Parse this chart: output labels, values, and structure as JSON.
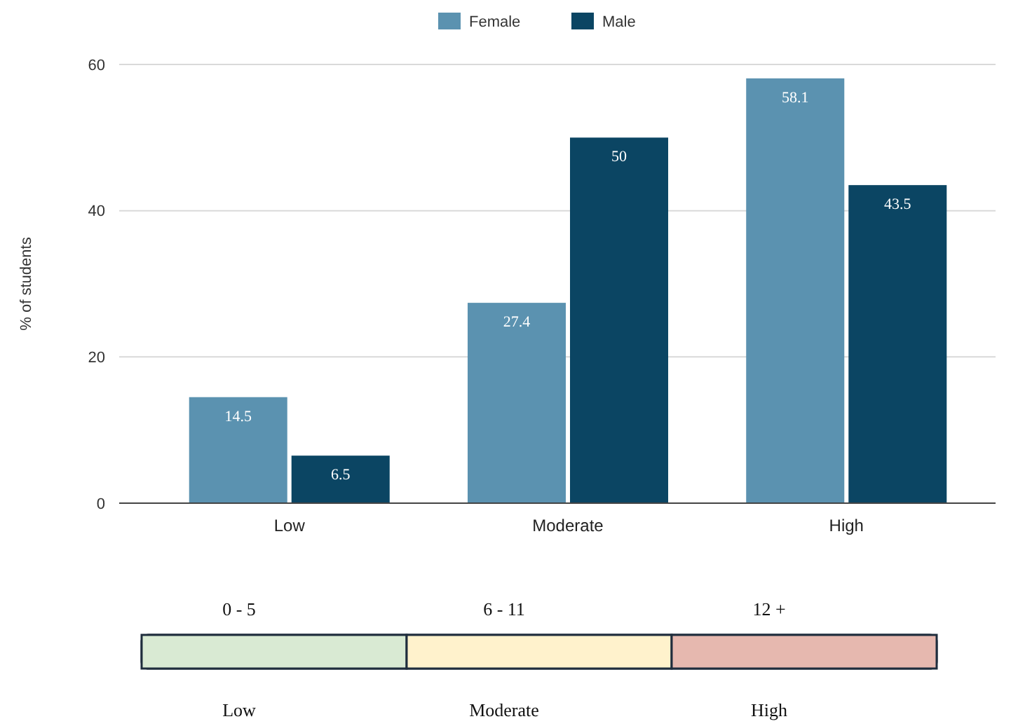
{
  "chart_data": {
    "type": "bar",
    "ylabel": "% of students",
    "categories": [
      "Low",
      "Moderate",
      "High"
    ],
    "series": [
      {
        "name": "Female",
        "color": "#5b92b0",
        "values": [
          14.5,
          27.4,
          58.1
        ]
      },
      {
        "name": "Male",
        "color": "#0b4563",
        "values": [
          6.5,
          50,
          43.5
        ]
      }
    ],
    "ylim": [
      0,
      60
    ],
    "yticks": [
      0,
      20,
      40,
      60
    ],
    "grid": "y",
    "legend": "top",
    "data_labels": true,
    "annotations": [
      "0 - 5",
      "6 - 11",
      "12 +",
      "Low",
      "Moderate",
      "High"
    ]
  }
}
